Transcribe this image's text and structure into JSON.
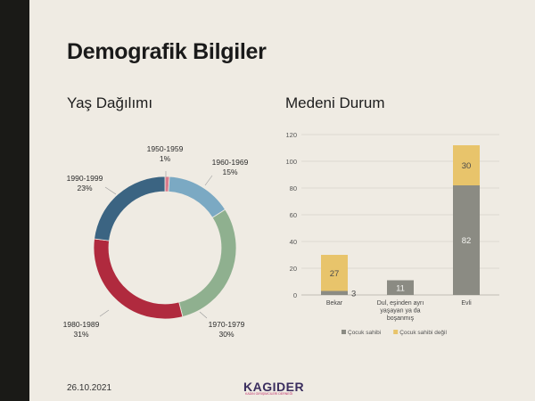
{
  "slide": {
    "title": "Demografik Bilgiler",
    "date": "26.10.2021",
    "logo": "KAGIDER",
    "logo_sub": "KADIN GİRİŞİMCİLERİ DERNEĞİ"
  },
  "chart_data": [
    {
      "type": "pie",
      "variant": "donut",
      "title": "Yaş Dağılımı",
      "slices": [
        {
          "label": "1950-1959",
          "value": 1,
          "pct_label": "1%",
          "color": "#d97b8d"
        },
        {
          "label": "1960-1969",
          "value": 15,
          "pct_label": "15%",
          "color": "#7ba9c3"
        },
        {
          "label": "1970-1979",
          "value": 30,
          "pct_label": "30%",
          "color": "#8fb08f"
        },
        {
          "label": "1980-1989",
          "value": 31,
          "pct_label": "31%",
          "color": "#b02a3e"
        },
        {
          "label": "1990-1999",
          "value": 23,
          "pct_label": "23%",
          "color": "#3b6482"
        }
      ]
    },
    {
      "type": "bar",
      "stacked": true,
      "title": "Medeni Durum",
      "categories": [
        "Bekar",
        "Dul, eşinden ayrı yaşayan ya da boşanmış",
        "Evli"
      ],
      "category_lines": [
        [
          "Bekar"
        ],
        [
          "Dul, eşinden ayrı",
          "yaşayan ya da",
          "boşanmış"
        ],
        [
          "Evli"
        ]
      ],
      "series": [
        {
          "name": "Çocuk sahibi",
          "values": [
            3,
            11,
            82
          ],
          "color": "#8b8b83"
        },
        {
          "name": "Çocuk sahibi değil",
          "values": [
            27,
            0,
            30
          ],
          "color": "#e8c46b"
        }
      ],
      "ylim": [
        0,
        120
      ],
      "yticks": [
        0,
        20,
        40,
        60,
        80,
        100,
        120
      ],
      "legend": "bottom"
    }
  ]
}
